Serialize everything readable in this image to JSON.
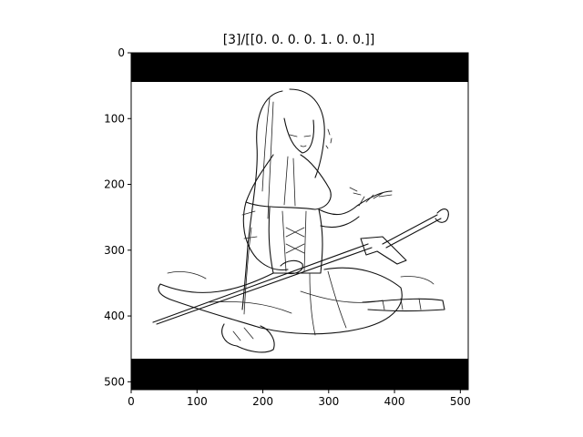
{
  "figure": {
    "title": "[3]/[[0. 0. 0. 0. 1. 0. 0.]]",
    "image_subject": "line-art-girl-with-sword-icon",
    "x_ticks": [
      "0",
      "100",
      "200",
      "300",
      "400",
      "500"
    ],
    "y_ticks": [
      "0",
      "100",
      "200",
      "300",
      "400",
      "500"
    ],
    "colors": {
      "letterbox": "#000000",
      "frame": "#000000",
      "paper": "#ffffff"
    }
  }
}
